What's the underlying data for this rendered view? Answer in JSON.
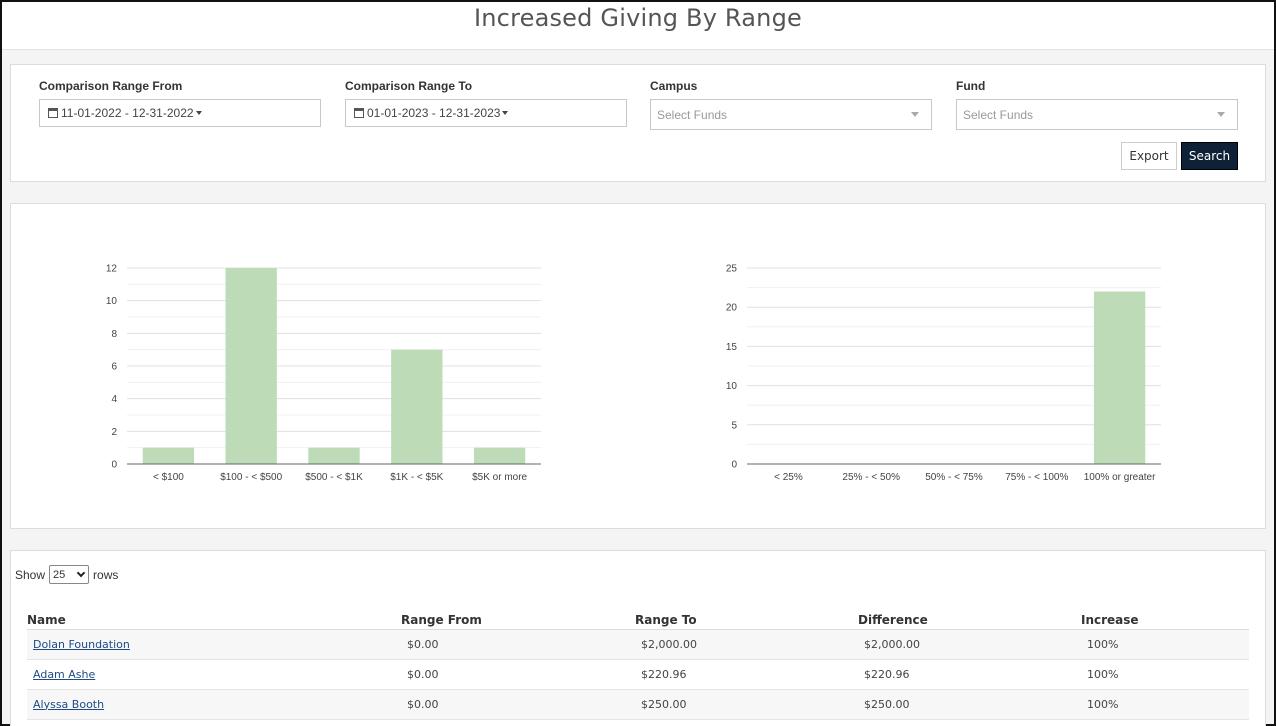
{
  "header": {
    "title": "Increased Giving By Range"
  },
  "filters": {
    "range_from": {
      "label": "Comparison Range From",
      "value": "11-01-2022 - 12-31-2022"
    },
    "range_to": {
      "label": "Comparison Range To",
      "value": "01-01-2023 - 12-31-2023"
    },
    "campus": {
      "label": "Campus",
      "placeholder": "Select Funds"
    },
    "fund": {
      "label": "Fund",
      "placeholder": "Select Funds"
    },
    "export_label": "Export",
    "search_label": "Search"
  },
  "chart_data": [
    {
      "type": "bar",
      "categories": [
        "< $100",
        "$100 - < $500",
        "$500 - < $1K",
        "$1K - < $5K",
        "$5K or more"
      ],
      "values": [
        1,
        12,
        1,
        7,
        1
      ],
      "yticks": [
        0,
        2,
        4,
        6,
        8,
        10,
        12
      ],
      "ylim": [
        0,
        12
      ],
      "grid": true,
      "color": "#bedbb8"
    },
    {
      "type": "bar",
      "categories": [
        "< 25%",
        "25% - < 50%",
        "50% - < 75%",
        "75% - < 100%",
        "100% or greater"
      ],
      "values": [
        0,
        0,
        0,
        0,
        22
      ],
      "yticks": [
        0,
        5,
        10,
        15,
        20,
        25
      ],
      "ylim": [
        0,
        25
      ],
      "grid": true,
      "color": "#bedbb8"
    }
  ],
  "table": {
    "show_label": "Show",
    "rows_value": "25",
    "rows_label": "rows",
    "columns": [
      "Name",
      "Range From",
      "Range To",
      "Difference",
      "Increase"
    ],
    "rows": [
      {
        "name": "Dolan Foundation",
        "range_from": "$0.00",
        "range_to": "$2,000.00",
        "difference": "$2,000.00",
        "increase": "100%"
      },
      {
        "name": "Adam Ashe",
        "range_from": "$0.00",
        "range_to": "$220.96",
        "difference": "$220.96",
        "increase": "100%"
      },
      {
        "name": "Alyssa Booth",
        "range_from": "$0.00",
        "range_to": "$250.00",
        "difference": "$250.00",
        "increase": "100%"
      }
    ]
  }
}
